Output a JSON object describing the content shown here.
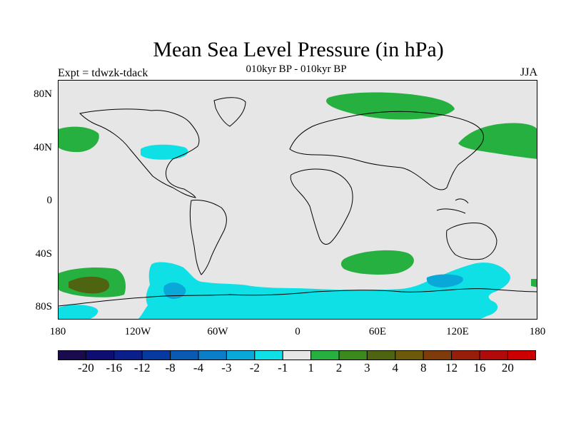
{
  "title": "Mean Sea Level Pressure (in hPa)",
  "subtitle": "010kyr BP - 010kyr BP",
  "experiment": "Expt = tdwzk-tdack",
  "season": "JJA",
  "lat_labels": [
    "80N",
    "40N",
    "0",
    "40S",
    "80S"
  ],
  "lon_labels": [
    "180",
    "120W",
    "60W",
    "0",
    "60E",
    "120E",
    "180"
  ],
  "colorbar": {
    "colors": [
      "#1a0a4e",
      "#0d0d72",
      "#0a1e8c",
      "#073aa0",
      "#0a5ab4",
      "#0a7ec8",
      "#0aa8d8",
      "#0ee0e6",
      "#e6e6e6",
      "#26b040",
      "#3c8a1e",
      "#4e6410",
      "#6a5a0a",
      "#7e3c0a",
      "#961e0a",
      "#b00a0a",
      "#cc0000"
    ],
    "labels": [
      "-20",
      "-16",
      "-12",
      "-8",
      "-4",
      "-3",
      "-2",
      "-1",
      "1",
      "2",
      "3",
      "4",
      "8",
      "12",
      "16",
      "20"
    ]
  },
  "map_colors": {
    "background": "#e6e6e6",
    "neg1": "#0ee0e6",
    "neg2": "#0aa8d8",
    "pos1": "#26b040",
    "pos3": "#4e6410"
  }
}
